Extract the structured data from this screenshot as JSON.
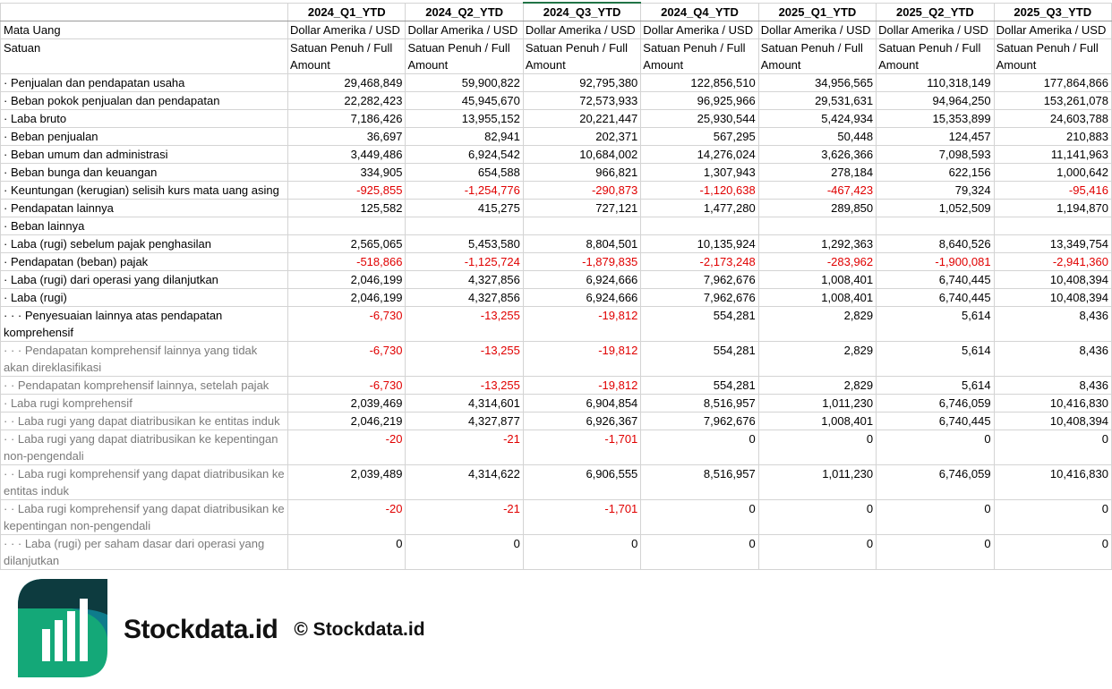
{
  "columns": [
    "2024_Q1_YTD",
    "2024_Q2_YTD",
    "2024_Q3_YTD",
    "2024_Q4_YTD",
    "2025_Q1_YTD",
    "2025_Q2_YTD",
    "2025_Q3_YTD"
  ],
  "meta_rows": [
    {
      "label": "Mata Uang",
      "value": "Dollar Amerika / USD"
    },
    {
      "label": "Satuan",
      "value": "Satuan Penuh / Full Amount"
    }
  ],
  "rows": [
    {
      "label": "· Penjualan dan pendapatan usaha",
      "values": [
        "29,468,849",
        "59,900,822",
        "92,795,380",
        "122,856,510",
        "34,956,565",
        "110,318,149",
        "177,864,866"
      ]
    },
    {
      "label": "· Beban pokok penjualan dan pendapatan",
      "values": [
        "22,282,423",
        "45,945,670",
        "72,573,933",
        "96,925,966",
        "29,531,631",
        "94,964,250",
        "153,261,078"
      ]
    },
    {
      "label": "· Laba bruto",
      "values": [
        "7,186,426",
        "13,955,152",
        "20,221,447",
        "25,930,544",
        "5,424,934",
        "15,353,899",
        "24,603,788"
      ]
    },
    {
      "label": "· Beban penjualan",
      "values": [
        "36,697",
        "82,941",
        "202,371",
        "567,295",
        "50,448",
        "124,457",
        "210,883"
      ]
    },
    {
      "label": "· Beban umum dan administrasi",
      "values": [
        "3,449,486",
        "6,924,542",
        "10,684,002",
        "14,276,024",
        "3,626,366",
        "7,098,593",
        "11,141,963"
      ]
    },
    {
      "label": "· Beban bunga dan keuangan",
      "values": [
        "334,905",
        "654,588",
        "966,821",
        "1,307,943",
        "278,184",
        "622,156",
        "1,000,642"
      ]
    },
    {
      "label": "· Keuntungan (kerugian) selisih kurs mata uang asing",
      "values": [
        "-925,855",
        "-1,254,776",
        "-290,873",
        "-1,120,638",
        "-467,423",
        "79,324",
        "-95,416"
      ]
    },
    {
      "label": "· Pendapatan lainnya",
      "values": [
        "125,582",
        "415,275",
        "727,121",
        "1,477,280",
        "289,850",
        "1,052,509",
        "1,194,870"
      ]
    },
    {
      "label": "· Beban lainnya",
      "values": [
        "",
        "",
        "",
        "",
        "",
        "",
        ""
      ]
    },
    {
      "label": "· Laba (rugi) sebelum pajak penghasilan",
      "values": [
        "2,565,065",
        "5,453,580",
        "8,804,501",
        "10,135,924",
        "1,292,363",
        "8,640,526",
        "13,349,754"
      ]
    },
    {
      "label": "· Pendapatan (beban) pajak",
      "values": [
        "-518,866",
        "-1,125,724",
        "-1,879,835",
        "-2,173,248",
        "-283,962",
        "-1,900,081",
        "-2,941,360"
      ]
    },
    {
      "label": "· Laba (rugi) dari operasi yang dilanjutkan",
      "values": [
        "2,046,199",
        "4,327,856",
        "6,924,666",
        "7,962,676",
        "1,008,401",
        "6,740,445",
        "10,408,394"
      ]
    },
    {
      "label": "· Laba (rugi)",
      "values": [
        "2,046,199",
        "4,327,856",
        "6,924,666",
        "7,962,676",
        "1,008,401",
        "6,740,445",
        "10,408,394"
      ]
    },
    {
      "label": "· · · Penyesuaian lainnya atas pendapatan komprehensif",
      "values": [
        "-6,730",
        "-13,255",
        "-19,812",
        "554,281",
        "2,829",
        "5,614",
        "8,436"
      ]
    },
    {
      "label": "· · · Pendapatan komprehensif lainnya yang tidak akan direklasifikasi",
      "grey": true,
      "values": [
        "-6,730",
        "-13,255",
        "-19,812",
        "554,281",
        "2,829",
        "5,614",
        "8,436"
      ]
    },
    {
      "label": "· · Pendapatan komprehensif lainnya, setelah pajak",
      "grey": true,
      "values": [
        "-6,730",
        "-13,255",
        "-19,812",
        "554,281",
        "2,829",
        "5,614",
        "8,436"
      ]
    },
    {
      "label": "· Laba rugi komprehensif",
      "grey": true,
      "values": [
        "2,039,469",
        "4,314,601",
        "6,904,854",
        "8,516,957",
        "1,011,230",
        "6,746,059",
        "10,416,830"
      ]
    },
    {
      "label": "· · Laba rugi yang dapat diatribusikan ke entitas induk",
      "grey": true,
      "values": [
        "2,046,219",
        "4,327,877",
        "6,926,367",
        "7,962,676",
        "1,008,401",
        "6,740,445",
        "10,408,394"
      ]
    },
    {
      "label": "· · Laba rugi yang dapat diatribusikan ke kepentingan non-pengendali",
      "grey": true,
      "values": [
        "-20",
        "-21",
        "-1,701",
        "0",
        "0",
        "0",
        "0"
      ]
    },
    {
      "label": "· · Laba rugi komprehensif yang dapat diatribusikan ke entitas induk",
      "grey": true,
      "values": [
        "2,039,489",
        "4,314,622",
        "6,906,555",
        "8,516,957",
        "1,011,230",
        "6,746,059",
        "10,416,830"
      ]
    },
    {
      "label": "· · Laba rugi komprehensif yang dapat diatribusikan ke kepentingan non-pengendali",
      "grey": true,
      "values": [
        "-20",
        "-21",
        "-1,701",
        "0",
        "0",
        "0",
        "0"
      ]
    },
    {
      "label": "· · · Laba (rugi) per saham dasar dari operasi yang dilanjutkan",
      "grey": true,
      "values": [
        "0",
        "0",
        "0",
        "0",
        "0",
        "0",
        "0"
      ]
    }
  ],
  "watermark": {
    "copyright": "© Stockdata.id",
    "brand": "Stockdata.id"
  },
  "colors": {
    "negative": "#e00000",
    "selected_column": "#217346",
    "logo_dark": "#0d3b3f",
    "logo_teal": "#0e7c8c",
    "logo_green": "#14a878"
  }
}
